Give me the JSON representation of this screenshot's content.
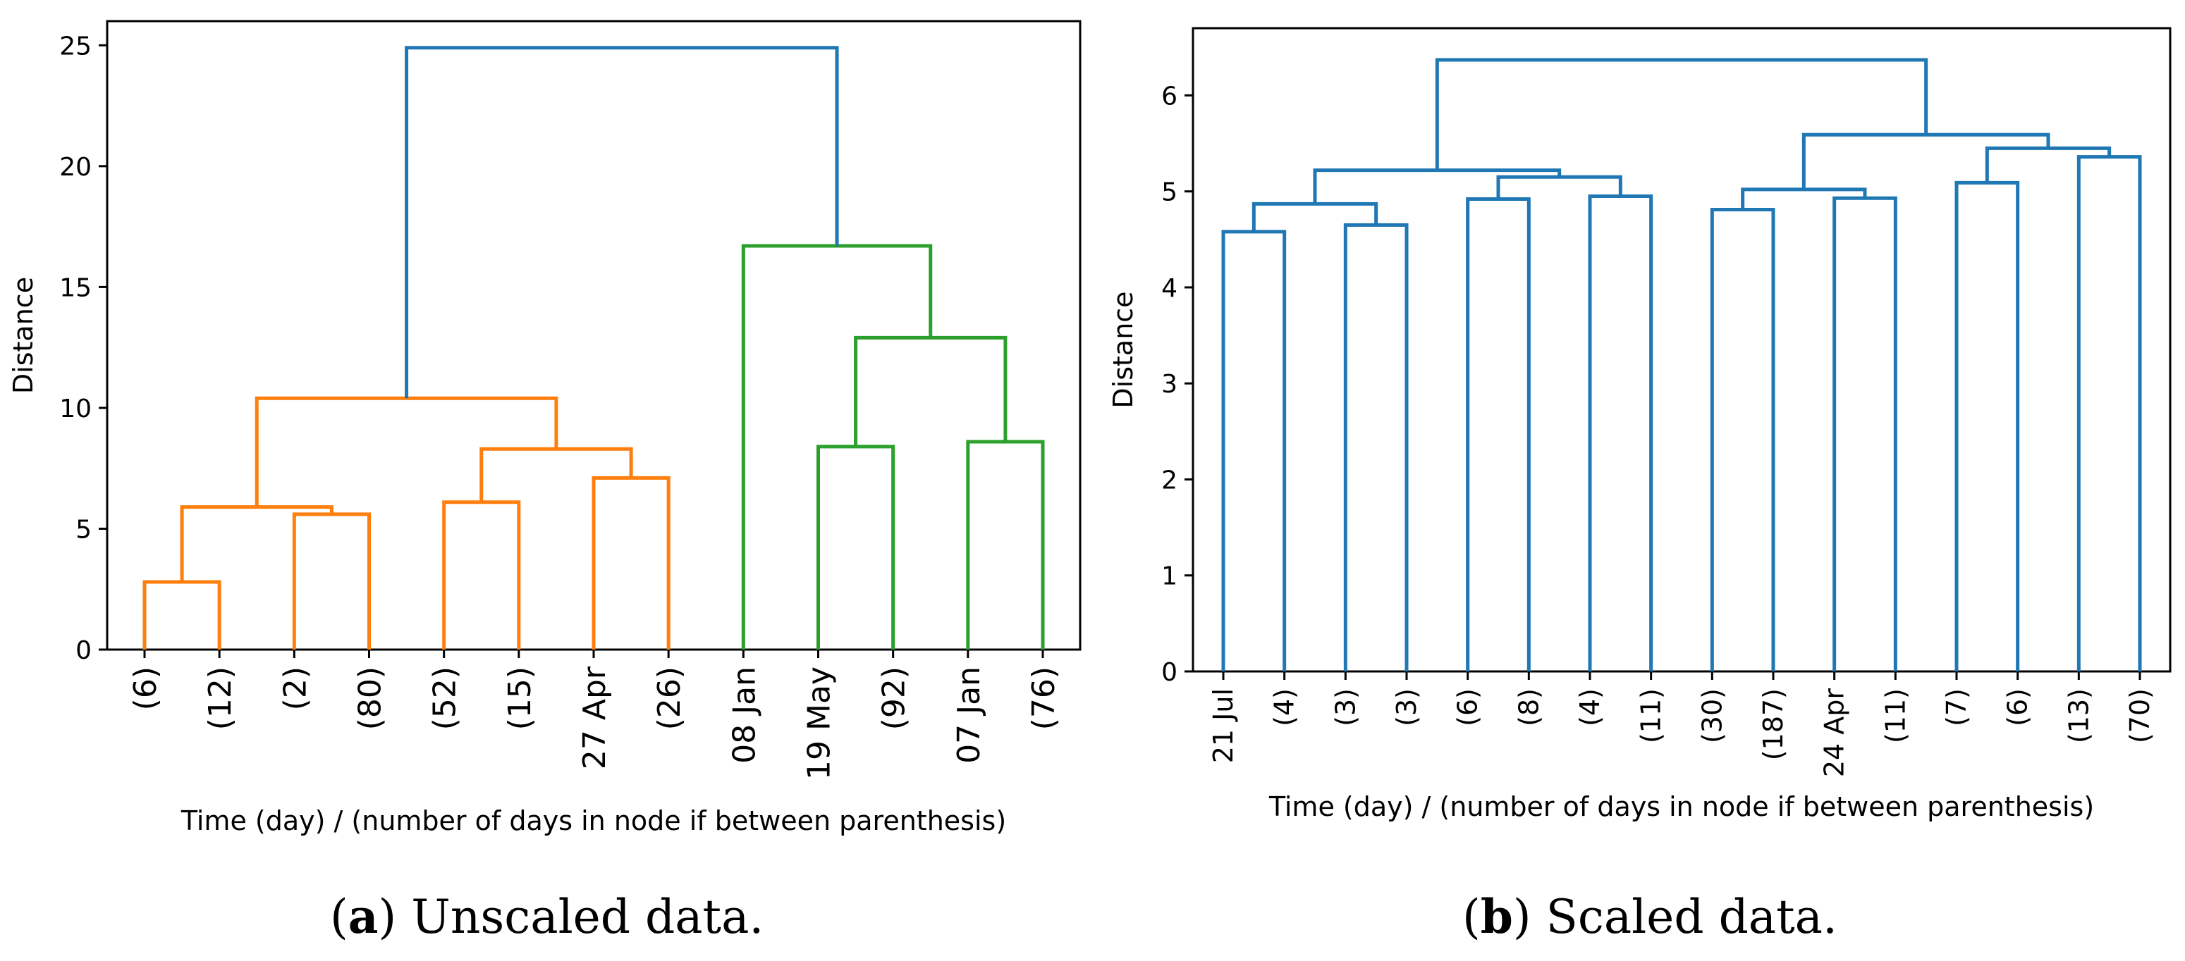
{
  "chart_data": [
    {
      "type": "dendrogram",
      "panel": "a",
      "caption_letter": "a",
      "caption_text": "Unscaled data.",
      "xlabel": "Time (day) / (number of days in node if between parenthesis)",
      "ylabel": "Distance",
      "ylim": [
        0,
        26
      ],
      "yticks": [
        0,
        5,
        10,
        15,
        20,
        25
      ],
      "leaves": [
        "(6)",
        "(12)",
        "(2)",
        "(80)",
        "(52)",
        "(15)",
        "27 Apr",
        "(26)",
        "08 Jan",
        "19 May",
        "(92)",
        "07 Jan",
        "(76)"
      ],
      "colors": {
        "orange": "#ff7f0e",
        "green": "#2ca02c",
        "blue": "#1f77b4"
      },
      "links": [
        {
          "left": 0,
          "right": 1,
          "height": 2.8,
          "color": "orange"
        },
        {
          "left": 2,
          "right": 3,
          "height": 5.6,
          "color": "orange"
        },
        {
          "left": 13,
          "right": 14,
          "height": 5.9,
          "color": "orange"
        },
        {
          "left": 4,
          "right": 5,
          "height": 6.1,
          "color": "orange"
        },
        {
          "left": 6,
          "right": 7,
          "height": 7.1,
          "color": "orange"
        },
        {
          "left": 16,
          "right": 17,
          "height": 8.3,
          "color": "orange"
        },
        {
          "left": 15,
          "right": 18,
          "height": 10.4,
          "color": "orange"
        },
        {
          "left": 9,
          "right": 10,
          "height": 8.4,
          "color": "green"
        },
        {
          "left": 11,
          "right": 12,
          "height": 8.6,
          "color": "green"
        },
        {
          "left": 20,
          "right": 21,
          "height": 12.9,
          "color": "green"
        },
        {
          "left": 8,
          "right": 22,
          "height": 16.7,
          "color": "green"
        },
        {
          "left": 19,
          "right": 23,
          "height": 24.9,
          "color": "blue"
        }
      ]
    },
    {
      "type": "dendrogram",
      "panel": "b",
      "caption_letter": "b",
      "caption_text": "Scaled data.",
      "xlabel": "Time (day) / (number of days in node if between parenthesis)",
      "ylabel": "Distance",
      "ylim": [
        0,
        6.7
      ],
      "yticks": [
        0,
        1,
        2,
        3,
        4,
        5,
        6
      ],
      "leaves": [
        "21 Jul",
        "(4)",
        "(3)",
        "(3)",
        "(6)",
        "(8)",
        "(4)",
        "(11)",
        "(30)",
        "(187)",
        "24 Apr",
        "(11)",
        "(7)",
        "(6)",
        "(13)",
        "(70)"
      ],
      "colors": {
        "blue": "#1f77b4"
      },
      "links": [
        {
          "left": 0,
          "right": 1,
          "height": 4.58,
          "color": "blue"
        },
        {
          "left": 2,
          "right": 3,
          "height": 4.65,
          "color": "blue"
        },
        {
          "left": 16,
          "right": 17,
          "height": 4.87,
          "color": "blue"
        },
        {
          "left": 4,
          "right": 5,
          "height": 4.92,
          "color": "blue"
        },
        {
          "left": 6,
          "right": 7,
          "height": 4.95,
          "color": "blue"
        },
        {
          "left": 19,
          "right": 20,
          "height": 5.15,
          "color": "blue"
        },
        {
          "left": 18,
          "right": 21,
          "height": 5.22,
          "color": "blue"
        },
        {
          "left": 8,
          "right": 9,
          "height": 4.81,
          "color": "blue"
        },
        {
          "left": 10,
          "right": 11,
          "height": 4.93,
          "color": "blue"
        },
        {
          "left": 23,
          "right": 24,
          "height": 5.02,
          "color": "blue"
        },
        {
          "left": 12,
          "right": 13,
          "height": 5.09,
          "color": "blue"
        },
        {
          "left": 14,
          "right": 15,
          "height": 5.36,
          "color": "blue"
        },
        {
          "left": 26,
          "right": 27,
          "height": 5.45,
          "color": "blue"
        },
        {
          "left": 25,
          "right": 28,
          "height": 5.59,
          "color": "blue"
        },
        {
          "left": 22,
          "right": 29,
          "height": 6.37,
          "color": "blue"
        }
      ]
    }
  ]
}
